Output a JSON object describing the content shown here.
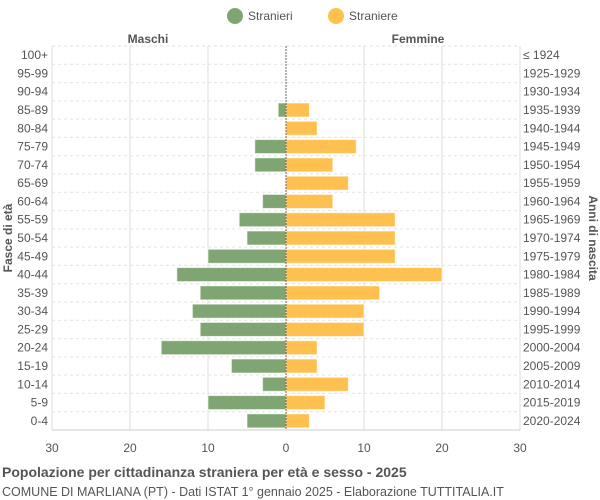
{
  "chart_data": {
    "type": "bar",
    "orientation": "horizontal-pyramid",
    "title": "Popolazione per cittadinanza straniera per età e sesso - 2025",
    "subtitle": "COMUNE DI MARLIANA (PT) - Dati ISTAT 1° gennaio 2025 - Elaborazione TUTTITALIA.IT",
    "left_header": "Maschi",
    "right_header": "Femmine",
    "ylabel_left": "Fasce di età",
    "ylabel_right": "Anni di nascita",
    "xlim": [
      -30,
      30
    ],
    "xticks": [
      "30",
      "20",
      "10",
      "0",
      "10",
      "20",
      "30"
    ],
    "grid": true,
    "legend_position": "top",
    "categories": [
      "100+",
      "95-99",
      "90-94",
      "85-89",
      "80-84",
      "75-79",
      "70-74",
      "65-69",
      "60-64",
      "55-59",
      "50-54",
      "45-49",
      "40-44",
      "35-39",
      "30-34",
      "25-29",
      "20-24",
      "15-19",
      "10-14",
      "5-9",
      "0-4"
    ],
    "birth_years": [
      "≤ 1924",
      "1925-1929",
      "1930-1934",
      "1935-1939",
      "1940-1944",
      "1945-1949",
      "1950-1954",
      "1955-1959",
      "1960-1964",
      "1965-1969",
      "1970-1974",
      "1975-1979",
      "1980-1984",
      "1985-1989",
      "1990-1994",
      "1995-1999",
      "2000-2004",
      "2005-2009",
      "2010-2014",
      "2015-2019",
      "2020-2024"
    ],
    "series": [
      {
        "name": "Stranieri",
        "color": "#7fa572",
        "values": [
          0,
          0,
          0,
          1,
          0,
          4,
          4,
          0,
          3,
          6,
          5,
          10,
          14,
          11,
          12,
          11,
          16,
          7,
          3,
          10,
          5
        ]
      },
      {
        "name": "Straniere",
        "color": "#fec04f",
        "values": [
          0,
          0,
          0,
          3,
          4,
          9,
          6,
          8,
          6,
          14,
          14,
          14,
          20,
          12,
          10,
          10,
          4,
          4,
          8,
          5,
          3
        ]
      }
    ]
  }
}
